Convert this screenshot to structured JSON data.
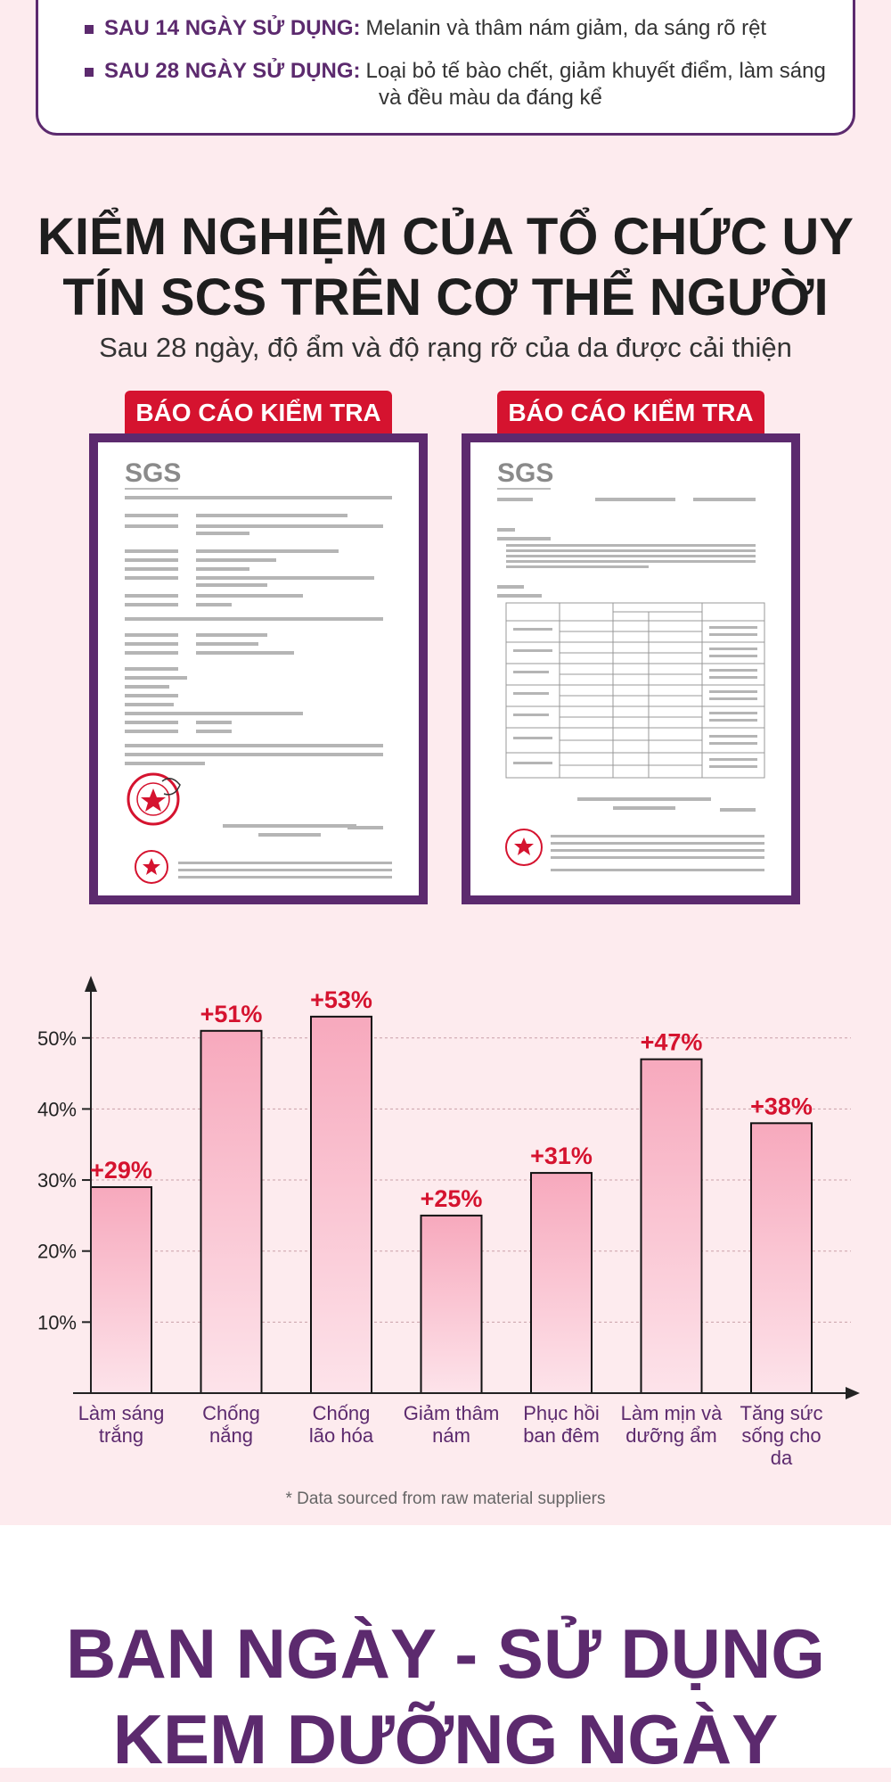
{
  "results": [
    {
      "label": "SAU 14 NGÀY SỬ DỤNG:",
      "text": "Melanin và thâm nám giảm, da sáng rõ rệt"
    },
    {
      "label": "SAU 28 NGÀY SỬ DỤNG:",
      "text": "Loại bỏ tế bào chết, giảm khuyết điểm, làm sáng",
      "text2": "và đều màu da đáng kể"
    }
  ],
  "section": {
    "title_line1": "KIỂM NGHIỆM CỦA TỔ CHỨC UY",
    "title_line2": "TÍN SCS TRÊN CƠ THỂ NGƯỜI",
    "subtitle": "Sau 28 ngày, độ ẩm và độ rạng rỡ của da được cải thiện"
  },
  "reports": [
    {
      "tag": "BÁO CÁO KIỂM TRA",
      "logo": "SGS"
    },
    {
      "tag": "BÁO CÁO KIỂM TRA",
      "logo": "SGS"
    }
  ],
  "chart_data": {
    "type": "bar",
    "categories": [
      "Làm sáng trắng",
      "Chống nắng",
      "Chống lão hóa",
      "Giảm thâm nám",
      "Phục hồi ban đêm",
      "Làm mịn và dưỡng ẩm",
      "Tăng sức sống cho da"
    ],
    "category_lines": [
      [
        "Làm sáng",
        "trắng"
      ],
      [
        "Chống",
        "nắng"
      ],
      [
        "Chống",
        "lão hóa"
      ],
      [
        "Giảm thâm",
        "nám"
      ],
      [
        "Phục hồi",
        "ban đêm"
      ],
      [
        "Làm mịn và",
        "dưỡng ẩm"
      ],
      [
        "Tăng sức",
        "sống cho",
        "da"
      ]
    ],
    "values": [
      29,
      51,
      53,
      25,
      31,
      47,
      38
    ],
    "data_labels": [
      "+29%",
      "+51%",
      "+53%",
      "+25%",
      "+31%",
      "+47%",
      "+38%"
    ],
    "yticks": [
      10,
      20,
      30,
      40,
      50
    ],
    "ytick_labels": [
      "10%",
      "20%",
      "30%",
      "40%",
      "50%"
    ],
    "ylim": [
      0,
      57
    ],
    "grid": true,
    "bar_color_top": "#f7a9bd",
    "bar_color_bottom": "#fde3ea",
    "label_color": "#d5132f",
    "category_color": "#5c2a6e"
  },
  "footnote": "* Data sourced from raw material suppliers",
  "bottom": {
    "line1": "BAN NGÀY - SỬ DỤNG",
    "line2": "KEM DƯỠNG NGÀY"
  },
  "colors": {
    "accent": "#5c2a6e",
    "red": "#d5132f",
    "background": "#fdebee"
  }
}
